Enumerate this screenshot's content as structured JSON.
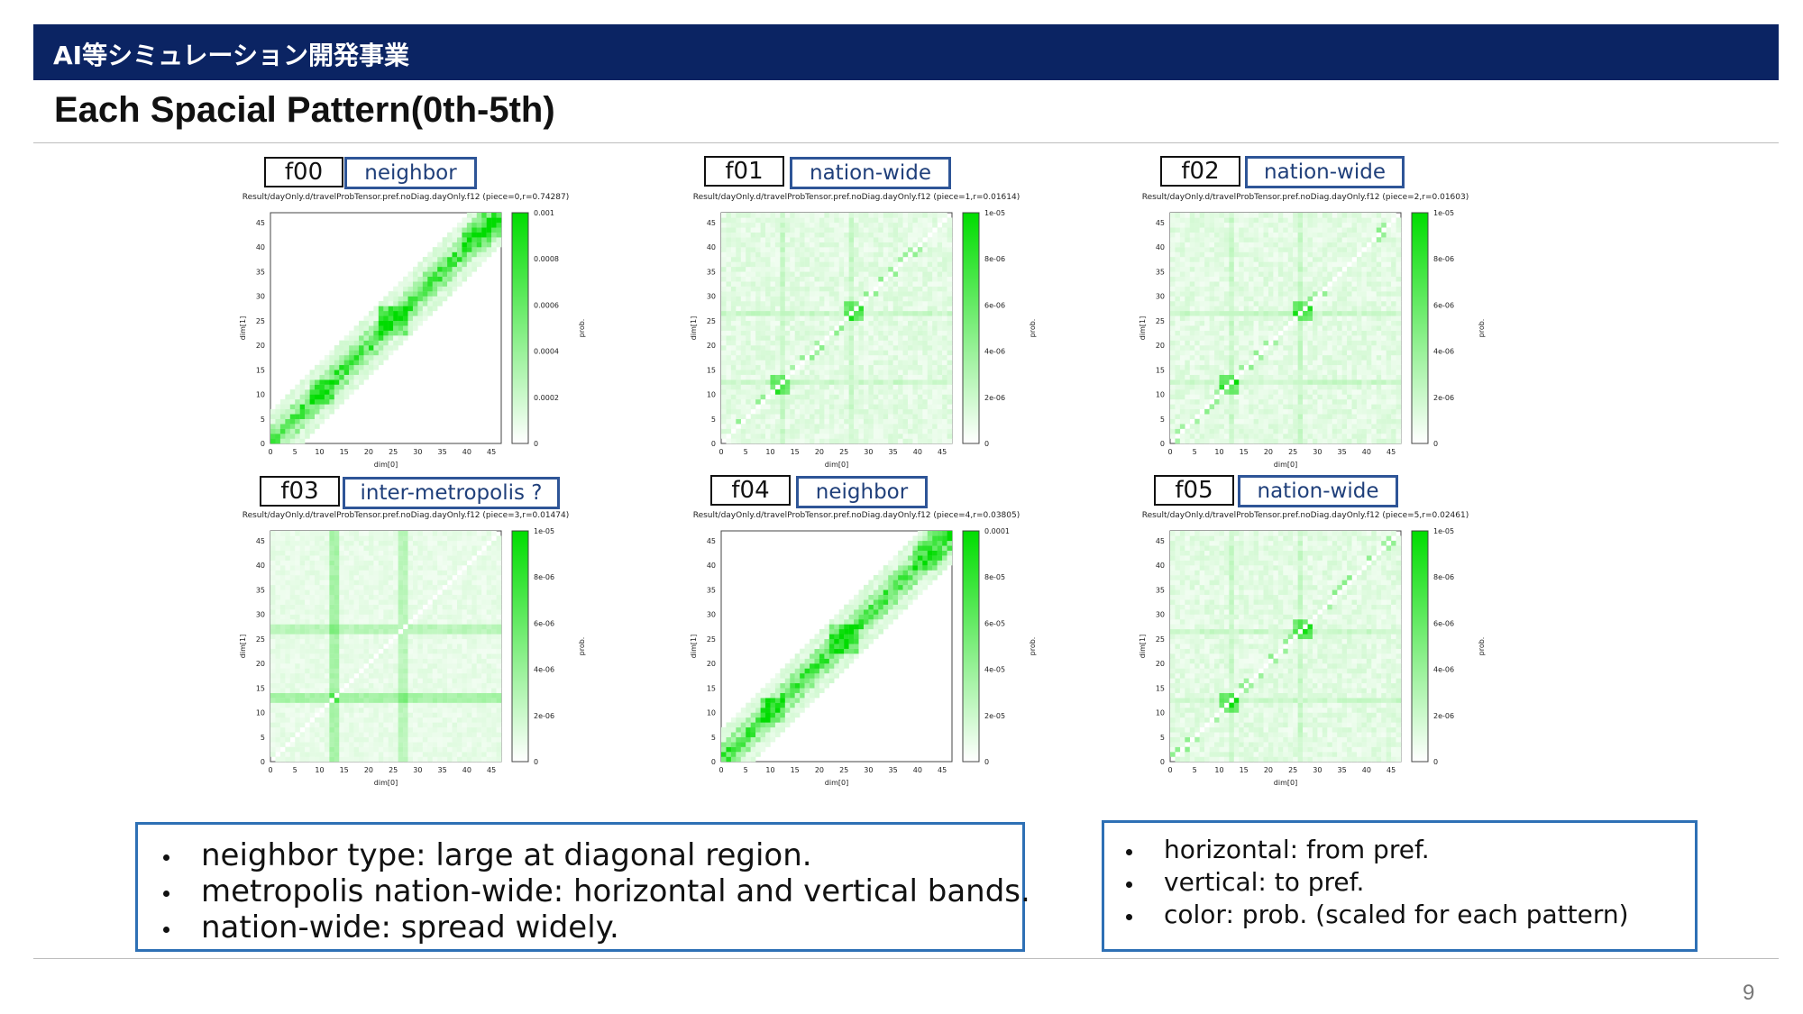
{
  "header": {
    "banner_title": "AI等シミュレーション開発事業",
    "slide_title": "Each Spacial Pattern(0th-5th)"
  },
  "panels": [
    {
      "id": "f00",
      "type": "neighbor",
      "plot_title": "Result/dayOnly.d/travelProbTensor.pref.noDiag.dayOnly.f12 (piece=0,r=0.74287)",
      "colorbar_ticks": [
        "0.001",
        "0.0008",
        "0.0006",
        "0.0004",
        "0.0002",
        "0"
      ]
    },
    {
      "id": "f01",
      "type": "nation-wide",
      "plot_title": "Result/dayOnly.d/travelProbTensor.pref.noDiag.dayOnly.f12 (piece=1,r=0.01614)",
      "colorbar_ticks": [
        "1e-05",
        "8e-06",
        "6e-06",
        "4e-06",
        "2e-06",
        "0"
      ]
    },
    {
      "id": "f02",
      "type": "nation-wide",
      "plot_title": "Result/dayOnly.d/travelProbTensor.pref.noDiag.dayOnly.f12 (piece=2,r=0.01603)",
      "colorbar_ticks": [
        "1e-05",
        "8e-06",
        "6e-06",
        "4e-06",
        "2e-06",
        "0"
      ]
    },
    {
      "id": "f03",
      "type": "inter-metropolis ?",
      "plot_title": "Result/dayOnly.d/travelProbTensor.pref.noDiag.dayOnly.f12 (piece=3,r=0.01474)",
      "colorbar_ticks": [
        "1e-05",
        "8e-06",
        "6e-06",
        "4e-06",
        "2e-06",
        "0"
      ]
    },
    {
      "id": "f04",
      "type": "neighbor",
      "plot_title": "Result/dayOnly.d/travelProbTensor.pref.noDiag.dayOnly.f12 (piece=4,r=0.03805)",
      "colorbar_ticks": [
        "0.0001",
        "8e-05",
        "6e-05",
        "4e-05",
        "2e-05",
        "0"
      ]
    },
    {
      "id": "f05",
      "type": "nation-wide",
      "plot_title": "Result/dayOnly.d/travelProbTensor.pref.noDiag.dayOnly.f12 (piece=5,r=0.02461)",
      "colorbar_ticks": [
        "1e-05",
        "8e-06",
        "6e-06",
        "4e-06",
        "2e-06",
        "0"
      ]
    }
  ],
  "axes": {
    "xlabel": "dim[0]",
    "ylabel": "dim[1]",
    "cblabel": "prob.",
    "ticks": [
      "0",
      "5",
      "10",
      "15",
      "20",
      "25",
      "30",
      "35",
      "40",
      "45"
    ]
  },
  "notes_left": [
    "neighbor type: large at diagonal region.",
    "metropolis nation-wide: horizontal and vertical bands.",
    "nation-wide: spread widely."
  ],
  "notes_right": [
    "horizontal: from pref.",
    "vertical: to pref.",
    "color: prob.  (scaled for each pattern)"
  ],
  "page_number": "9",
  "colors": {
    "banner": "#0b2463",
    "heat": "#00dd00",
    "note_border": "#2e70b5",
    "type_border": "#2e5597"
  }
}
